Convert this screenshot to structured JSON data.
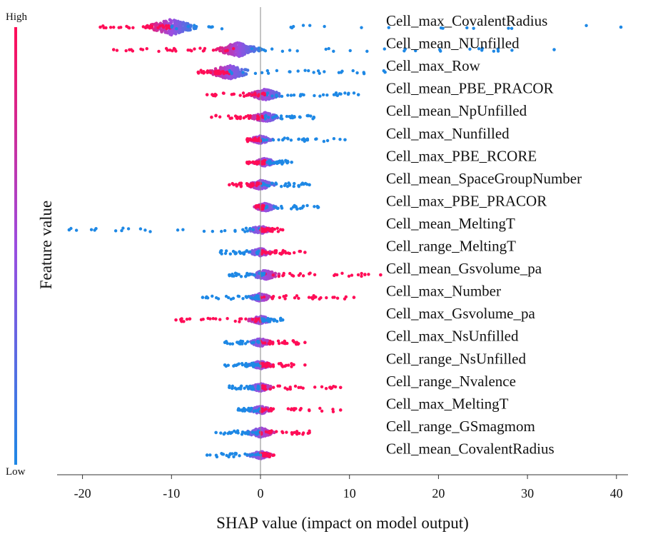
{
  "chart_data": {
    "type": "scatter",
    "subtype": "shap-beeswarm",
    "title": "",
    "xlabel": "SHAP value (impact on model output)",
    "xlim": [
      -22,
      42
    ],
    "xticks": [
      -20,
      -10,
      0,
      10,
      20,
      30,
      40
    ],
    "grid": false,
    "colorbar": {
      "label": "Feature value",
      "high_label": "High",
      "low_label": "Low",
      "high_color": "#ff0d57",
      "low_color": "#1e88e5"
    },
    "features": [
      {
        "name": "Cell_max_CovalentRadius",
        "min": -18,
        "max": 40.5,
        "center": -10,
        "neg": "high",
        "spread": 1.0
      },
      {
        "name": "Cell_mean_NUnfilled",
        "min": -16.5,
        "max": 33,
        "center": -2.5,
        "neg": "high",
        "spread": 0.9
      },
      {
        "name": "Cell_max_Row",
        "min": -7,
        "max": 14,
        "center": -3.5,
        "neg": "high",
        "spread": 0.9
      },
      {
        "name": "Cell_mean_PBE_PRACOR",
        "min": -6,
        "max": 11,
        "center": 0.5,
        "neg": "high",
        "spread": 0.7
      },
      {
        "name": "Cell_mean_NpUnfilled",
        "min": -5.5,
        "max": 6,
        "center": 0.5,
        "neg": "high",
        "spread": 0.6
      },
      {
        "name": "Cell_max_Nunfilled",
        "min": -1.5,
        "max": 9.5,
        "center": 0,
        "neg": "high",
        "spread": 0.5
      },
      {
        "name": "Cell_max_PBE_RCORE",
        "min": -1.5,
        "max": 3.5,
        "center": 0.5,
        "neg": "high",
        "spread": 0.5
      },
      {
        "name": "Cell_mean_SpaceGroupNumber",
        "min": -3.5,
        "max": 5.5,
        "center": 0,
        "neg": "high",
        "spread": 0.6
      },
      {
        "name": "Cell_max_PBE_PRACOR",
        "min": -0.5,
        "max": 6.5,
        "center": 0.5,
        "neg": "high",
        "spread": 0.5
      },
      {
        "name": "Cell_mean_MeltingT",
        "min": -21.5,
        "max": 2.5,
        "center": 0,
        "neg": "low",
        "spread": 0.5
      },
      {
        "name": "Cell_range_MeltingT",
        "min": -4.5,
        "max": 5,
        "center": 0,
        "neg": "low",
        "spread": 0.5
      },
      {
        "name": "Cell_mean_Gsvolume_pa",
        "min": -3.5,
        "max": 13.5,
        "center": 0.5,
        "neg": "low",
        "spread": 0.6
      },
      {
        "name": "Cell_max_Number",
        "min": -6.5,
        "max": 10.5,
        "center": 0,
        "neg": "low",
        "spread": 0.5
      },
      {
        "name": "Cell_max_Gsvolume_pa",
        "min": -9.5,
        "max": 2.5,
        "center": 0,
        "neg": "high",
        "spread": 0.5
      },
      {
        "name": "Cell_max_NsUnfilled",
        "min": -4,
        "max": 5,
        "center": 0,
        "neg": "low",
        "spread": 0.5
      },
      {
        "name": "Cell_range_NsUnfilled",
        "min": -4,
        "max": 5,
        "center": 0,
        "neg": "low",
        "spread": 0.5
      },
      {
        "name": "Cell_range_Nvalence",
        "min": -3.5,
        "max": 9,
        "center": 0,
        "neg": "low",
        "spread": 0.5
      },
      {
        "name": "Cell_max_MeltingT",
        "min": -2.5,
        "max": 9,
        "center": 0,
        "neg": "low",
        "spread": 0.5
      },
      {
        "name": "Cell_range_GSmagmom",
        "min": -5,
        "max": 5.5,
        "center": 0,
        "neg": "low",
        "spread": 0.6
      },
      {
        "name": "Cell_mean_CovalentRadius",
        "min": -6,
        "max": 1.5,
        "center": 0,
        "neg": "low",
        "spread": 0.5
      }
    ]
  }
}
